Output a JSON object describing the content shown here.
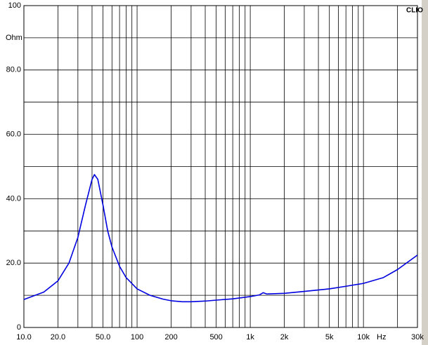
{
  "chart_data": {
    "type": "line",
    "title": "CLIO",
    "x_unit": "Hz",
    "y_unit": "Ohm",
    "log_x": true,
    "grid": true,
    "color": "#0000e0",
    "x": [
      10,
      15,
      20,
      25,
      30,
      35,
      40,
      42,
      45,
      50,
      55,
      60,
      70,
      80,
      100,
      130,
      170,
      200,
      250,
      300,
      400,
      500,
      700,
      1000,
      1200,
      1300,
      1400,
      2000,
      3000,
      5000,
      7000,
      10000,
      15000,
      20000,
      30000
    ],
    "values": [
      8.7,
      11,
      14.5,
      20,
      28,
      38,
      46,
      47.5,
      46,
      38,
      30,
      25,
      19,
      15.5,
      12,
      10,
      8.8,
      8.3,
      8,
      8,
      8.2,
      8.5,
      8.9,
      9.6,
      10.1,
      10.8,
      10.4,
      10.6,
      11.2,
      12,
      12.8,
      13.7,
      15.5,
      18,
      22.5
    ],
    "xlim": [
      10,
      30000
    ],
    "ylim": [
      0,
      100
    ],
    "xticks": [
      {
        "value": 10,
        "label": "10.0"
      },
      {
        "value": 20,
        "label": "20.0"
      },
      {
        "value": 50,
        "label": "50.0"
      },
      100,
      200,
      500,
      {
        "value": 1000,
        "label": "1k"
      },
      {
        "value": 2000,
        "label": "2k"
      },
      {
        "value": 5000,
        "label": "5k"
      },
      {
        "value": 10000,
        "label": "10k"
      },
      {
        "value": 30000,
        "label": "30k"
      }
    ],
    "xminor": [
      30,
      40,
      60,
      70,
      80,
      90,
      300,
      400,
      600,
      700,
      800,
      900,
      3000,
      4000,
      6000,
      7000,
      8000,
      9000,
      20000
    ],
    "yticks": [
      0,
      {
        "value": 20,
        "label": "20.0"
      },
      {
        "value": 40,
        "label": "40.0"
      },
      {
        "value": 60,
        "label": "60.0"
      },
      {
        "value": 80,
        "label": "80.0"
      },
      100
    ],
    "yminor": [
      10,
      30,
      50,
      70,
      90
    ]
  }
}
